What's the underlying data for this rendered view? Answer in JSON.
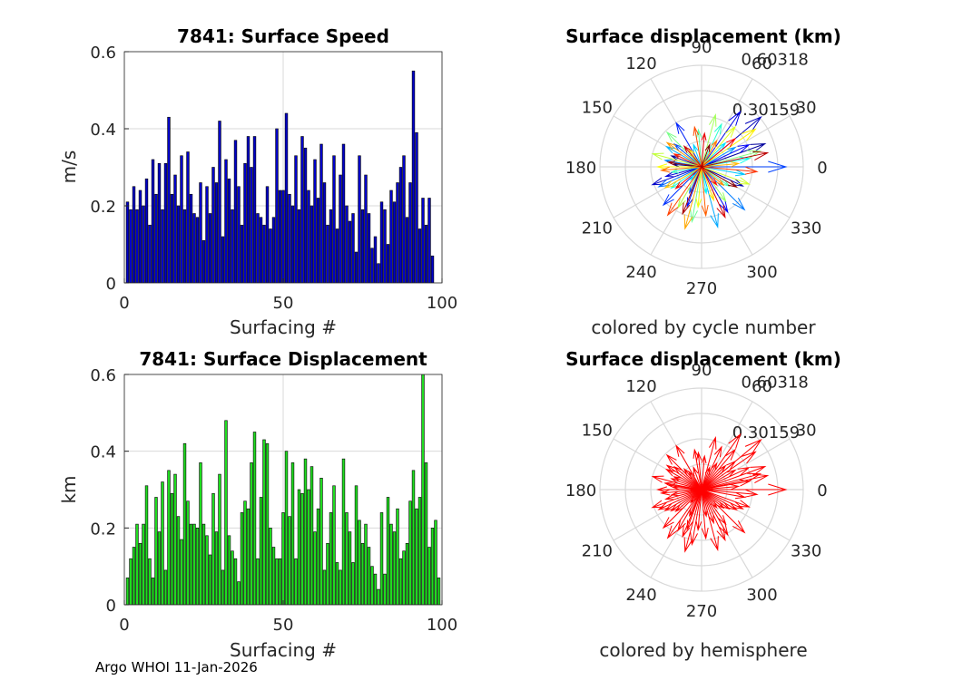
{
  "footer": "Argo WHOI 11-Jan-2026",
  "colors": {
    "speed_bar": "#0000c8",
    "displacement_bar": "#1fdc1f",
    "hemisphere_arrow": "#ff0000",
    "grid": "#d9d9d9",
    "axis": "#262626"
  },
  "chart_data": [
    {
      "id": "speed",
      "type": "bar",
      "title": "7841: Surface Speed",
      "xlabel": "Surfacing #",
      "ylabel": "m/s",
      "xlim": [
        0,
        100
      ],
      "ylim": [
        0,
        0.6
      ],
      "xticks": [
        "0",
        "50",
        "100"
      ],
      "yticks": [
        "0",
        "0.2",
        "0.4",
        "0.6"
      ],
      "x_start": 1,
      "values": [
        0.21,
        0.19,
        0.25,
        0.19,
        0.24,
        0.2,
        0.27,
        0.15,
        0.32,
        0.23,
        0.31,
        0.19,
        0.31,
        0.43,
        0.23,
        0.28,
        0.2,
        0.33,
        0.19,
        0.34,
        0.23,
        0.18,
        0.17,
        0.26,
        0.11,
        0.25,
        0.18,
        0.3,
        0.26,
        0.42,
        0.12,
        0.32,
        0.27,
        0.19,
        0.37,
        0.25,
        0.15,
        0.31,
        0.38,
        0.3,
        0.38,
        0.18,
        0.17,
        0.15,
        0.25,
        0.14,
        0.17,
        0.4,
        0.24,
        0.24,
        0.44,
        0.23,
        0.2,
        0.33,
        0.19,
        0.38,
        0.35,
        0.24,
        0.2,
        0.32,
        0.22,
        0.36,
        0.26,
        0.15,
        0.19,
        0.33,
        0.14,
        0.28,
        0.36,
        0.2,
        0.16,
        0.18,
        0.08,
        0.33,
        0.19,
        0.28,
        0.18,
        0.09,
        0.12,
        0.05,
        0.21,
        0.19,
        0.1,
        0.24,
        0.21,
        0.26,
        0.3,
        0.33,
        0.17,
        0.26,
        0.55,
        0.39,
        0.14,
        0.22,
        0.15,
        0.22,
        0.07
      ]
    },
    {
      "id": "polar_cycle",
      "type": "polar_arrows",
      "title": "Surface displacement (km)",
      "caption": "colored by cycle number",
      "rmax": 0.60318,
      "ring_labels": [
        "0.30159",
        "0.60318"
      ],
      "angle_labels": [
        "0",
        "30",
        "60",
        "90",
        "120",
        "150",
        "180",
        "210",
        "240",
        "270",
        "300",
        "330"
      ],
      "colormap": "jet",
      "vectors": [
        {
          "angle": 175,
          "r": 0.17
        },
        {
          "angle": 160,
          "r": 0.19
        },
        {
          "angle": 20,
          "r": 0.4
        },
        {
          "angle": 335,
          "r": 0.27
        },
        {
          "angle": 40,
          "r": 0.46
        },
        {
          "angle": 200,
          "r": 0.31
        },
        {
          "angle": 195,
          "r": 0.22
        },
        {
          "angle": 55,
          "r": 0.4
        },
        {
          "angle": 25,
          "r": 0.31
        },
        {
          "angle": 300,
          "r": 0.31
        },
        {
          "angle": 250,
          "r": 0.25
        },
        {
          "angle": 120,
          "r": 0.3
        },
        {
          "angle": 225,
          "r": 0.32
        },
        {
          "angle": 0,
          "r": 0.5
        },
        {
          "angle": 140,
          "r": 0.21
        },
        {
          "angle": 245,
          "r": 0.17
        },
        {
          "angle": 205,
          "r": 0.28
        },
        {
          "angle": 315,
          "r": 0.36
        },
        {
          "angle": 170,
          "r": 0.22
        },
        {
          "angle": 30,
          "r": 0.23
        },
        {
          "angle": 285,
          "r": 0.37
        },
        {
          "angle": 150,
          "r": 0.24
        },
        {
          "angle": 350,
          "r": 0.26
        },
        {
          "angle": 110,
          "r": 0.14
        },
        {
          "angle": 45,
          "r": 0.2
        },
        {
          "angle": 230,
          "r": 0.1
        },
        {
          "angle": 280,
          "r": 0.16
        },
        {
          "angle": 10,
          "r": 0.29
        },
        {
          "angle": 215,
          "r": 0.22
        },
        {
          "angle": 65,
          "r": 0.28
        },
        {
          "angle": 190,
          "r": 0.18
        },
        {
          "angle": 325,
          "r": 0.2
        },
        {
          "angle": 95,
          "r": 0.22
        },
        {
          "angle": 260,
          "r": 0.33
        },
        {
          "angle": 135,
          "r": 0.29
        },
        {
          "angle": 15,
          "r": 0.36
        },
        {
          "angle": 305,
          "r": 0.25
        },
        {
          "angle": 75,
          "r": 0.32
        },
        {
          "angle": 240,
          "r": 0.28
        },
        {
          "angle": 165,
          "r": 0.3
        },
        {
          "angle": 340,
          "r": 0.3
        },
        {
          "angle": 50,
          "r": 0.31
        },
        {
          "angle": 265,
          "r": 0.24
        },
        {
          "angle": 180,
          "r": 0.26
        },
        {
          "angle": 35,
          "r": 0.39
        },
        {
          "angle": 290,
          "r": 0.21
        },
        {
          "angle": 125,
          "r": 0.13
        },
        {
          "angle": 210,
          "r": 0.25
        },
        {
          "angle": 5,
          "r": 0.22
        },
        {
          "angle": 255,
          "r": 0.38
        },
        {
          "angle": 145,
          "r": 0.25
        },
        {
          "angle": 320,
          "r": 0.17
        },
        {
          "angle": 60,
          "r": 0.18
        },
        {
          "angle": 185,
          "r": 0.24
        },
        {
          "angle": 275,
          "r": 0.29
        },
        {
          "angle": 100,
          "r": 0.24
        },
        {
          "angle": 235,
          "r": 0.35
        },
        {
          "angle": 355,
          "r": 0.33
        },
        {
          "angle": 155,
          "r": 0.18
        },
        {
          "angle": 310,
          "r": 0.14
        },
        {
          "angle": 40,
          "r": 0.26
        },
        {
          "angle": 220,
          "r": 0.2
        },
        {
          "angle": 85,
          "r": 0.2
        },
        {
          "angle": 295,
          "r": 0.33
        },
        {
          "angle": 130,
          "r": 0.16
        },
        {
          "angle": 12,
          "r": 0.4
        },
        {
          "angle": 248,
          "r": 0.3
        },
        {
          "angle": 172,
          "r": 0.2
        },
        {
          "angle": 330,
          "r": 0.24
        },
        {
          "angle": 70,
          "r": 0.14
        }
      ]
    },
    {
      "id": "displacement",
      "type": "bar",
      "title": "7841: Surface Displacement",
      "xlabel": "Surfacing #",
      "ylabel": "km",
      "xlim": [
        0,
        100
      ],
      "ylim": [
        0,
        0.6
      ],
      "xticks": [
        "0",
        "50",
        "100"
      ],
      "yticks": [
        "0",
        "0.2",
        "0.4",
        "0.6"
      ],
      "x_start": 1,
      "values": [
        0.07,
        0.12,
        0.15,
        0.21,
        0.16,
        0.21,
        0.31,
        0.12,
        0.07,
        0.28,
        0.19,
        0.32,
        0.09,
        0.35,
        0.29,
        0.34,
        0.23,
        0.17,
        0.42,
        0.27,
        0.21,
        0.21,
        0.2,
        0.37,
        0.21,
        0.18,
        0.13,
        0.29,
        0.19,
        0.34,
        0.09,
        0.48,
        0.18,
        0.14,
        0.12,
        0.06,
        0.24,
        0.27,
        0.25,
        0.37,
        0.45,
        0.12,
        0.28,
        0.43,
        0.42,
        0.2,
        0.15,
        0.12,
        0.12,
        0.24,
        0.4,
        0.23,
        0.37,
        0.12,
        0.3,
        0.29,
        0.38,
        0.3,
        0.36,
        0.19,
        0.25,
        0.33,
        0.09,
        0.16,
        0.24,
        0.31,
        0.11,
        0.09,
        0.38,
        0.24,
        0.19,
        0.11,
        0.31,
        0.22,
        0.16,
        0.21,
        0.15,
        0.1,
        0.08,
        0.04,
        0.24,
        0.08,
        0.28,
        0.21,
        0.19,
        0.25,
        0.12,
        0.14,
        0.16,
        0.27,
        0.35,
        0.25,
        0.28,
        0.6,
        0.37,
        0.15,
        0.2,
        0.22,
        0.07
      ]
    },
    {
      "id": "polar_hemisphere",
      "type": "polar_arrows",
      "title": "Surface displacement (km)",
      "caption": "colored by hemisphere",
      "rmax": 0.60318,
      "ring_labels": [
        "0.30159",
        "0.60318"
      ],
      "angle_labels": [
        "0",
        "30",
        "60",
        "90",
        "120",
        "150",
        "180",
        "210",
        "240",
        "270",
        "300",
        "330"
      ],
      "colormap": "single",
      "vectors": "same-as:polar_cycle"
    }
  ]
}
